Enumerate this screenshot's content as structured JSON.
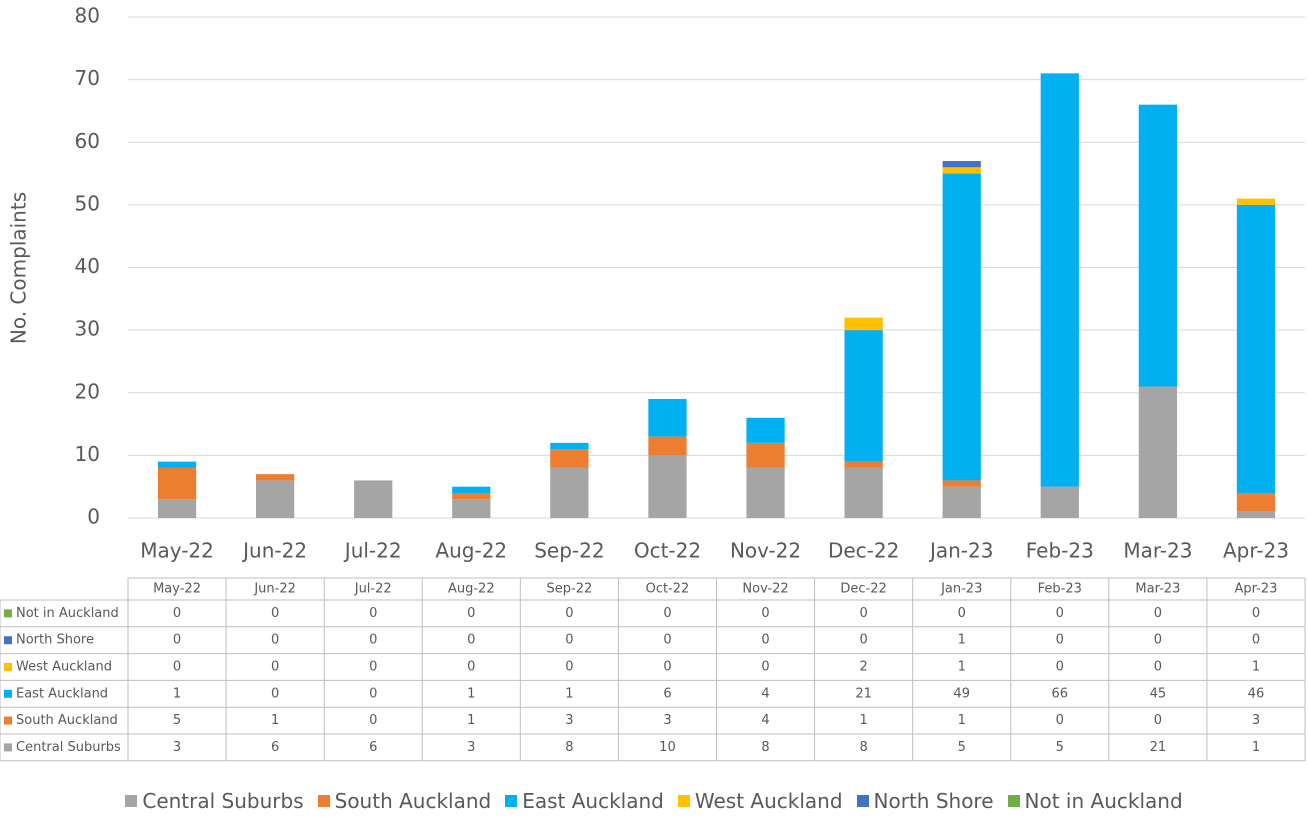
{
  "chart_data": {
    "type": "bar",
    "stacked": true,
    "data_table": true,
    "grid": true,
    "ylabel": "No. Complaints",
    "categories": [
      "May-22",
      "Jun-22",
      "Jul-22",
      "Aug-22",
      "Sep-22",
      "Oct-22",
      "Nov-22",
      "Dec-22",
      "Jan-23",
      "Feb-23",
      "Mar-23",
      "Apr-23"
    ],
    "series": [
      {
        "name": "Central Suburbs",
        "color": "#a5a5a5",
        "values": [
          3,
          6,
          6,
          3,
          8,
          10,
          8,
          8,
          5,
          5,
          21,
          1
        ]
      },
      {
        "name": "South Auckland",
        "color": "#ed7d31",
        "values": [
          5,
          1,
          0,
          1,
          3,
          3,
          4,
          1,
          1,
          0,
          0,
          3
        ]
      },
      {
        "name": "East Auckland",
        "color": "#00b0f0",
        "values": [
          1,
          0,
          0,
          1,
          1,
          6,
          4,
          21,
          49,
          66,
          45,
          46
        ]
      },
      {
        "name": "West Auckland",
        "color": "#ffc000",
        "values": [
          0,
          0,
          0,
          0,
          0,
          0,
          0,
          2,
          1,
          0,
          0,
          1
        ]
      },
      {
        "name": "North Shore",
        "color": "#4472c4",
        "values": [
          0,
          0,
          0,
          0,
          0,
          0,
          0,
          0,
          1,
          0,
          0,
          0
        ]
      },
      {
        "name": "Not in Auckland",
        "color": "#70ad47",
        "values": [
          0,
          0,
          0,
          0,
          0,
          0,
          0,
          0,
          0,
          0,
          0,
          0
        ]
      }
    ],
    "ylim": [
      0,
      80
    ],
    "yticks": [
      0,
      10,
      20,
      30,
      40,
      50,
      60,
      70,
      80
    ]
  }
}
